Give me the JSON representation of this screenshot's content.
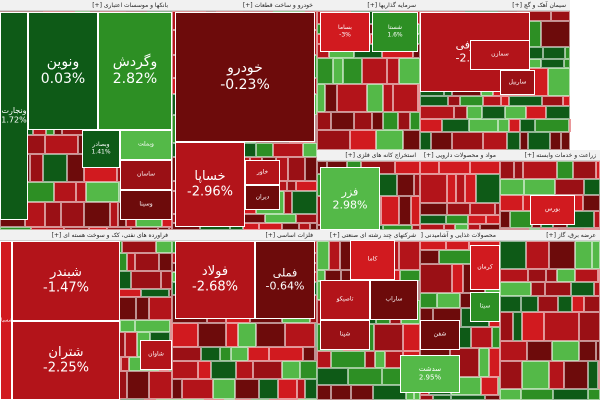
{
  "palette": {
    "dark_red": "#6d0b0b",
    "red": "#b3141a",
    "mid_red": "#9a1015",
    "bright_red": "#d11a1f",
    "dark_green": "#0e5a17",
    "green": "#2d8f24",
    "bright_green": "#54b948"
  },
  "chart_data": {
    "type": "heatmap",
    "sectors": [
      {
        "title": "بانکها و موسسات اعتباری [+]"
      },
      {
        "title": "خودرو و ساخت قطعات [+]"
      },
      {
        "title": "سرمایه گذاریها [+]"
      },
      {
        "title": "سیمان آهک و گچ [+]"
      },
      {
        "title": "فراورده های نفتی، کک و سوخت هسته ای [+]"
      },
      {
        "title": "فلزات اساسی [+]"
      },
      {
        "title": "استخراج کانه های فلزی [+]"
      },
      {
        "title": "مواد و محصولات دارویی [+]"
      },
      {
        "title": "زراعت و خدمات وابسته [+]"
      },
      {
        "title": "شرکتهای چند رشته ای صنعتی [+]"
      },
      {
        "title": "محصولات غذایی و آشامیدنی [+]"
      },
      {
        "title": "عرضه برق، گاز [+]"
      }
    ],
    "stocks": [
      {
        "symbol": "ونوین",
        "change": "0.03%"
      },
      {
        "symbol": "وگردش",
        "change": "2.82%"
      },
      {
        "symbol": "ونجارت",
        "change": "1.72%"
      },
      {
        "symbol": "خودرو",
        "change": "-0.23%"
      },
      {
        "symbol": "خساپا",
        "change": "-2.96%"
      },
      {
        "symbol": "سصوفی",
        "change": "-2.95%"
      },
      {
        "symbol": "شبندر",
        "change": "-1.47%"
      },
      {
        "symbol": "شتران",
        "change": "-2.25%"
      },
      {
        "symbol": "فولاد",
        "change": "-2.68%"
      },
      {
        "symbol": "فملی",
        "change": "-0.64%"
      },
      {
        "symbol": "فزر",
        "change": "2.98%"
      },
      {
        "symbol": "بساما",
        "change": "-3%"
      },
      {
        "symbol": "وبصادر",
        "change": "1.41%"
      },
      {
        "symbol": "سدشت",
        "change": "2.95%"
      },
      {
        "symbol": "شستا",
        "change": "1.6%"
      },
      {
        "symbol": "وبملت",
        "change": ""
      },
      {
        "symbol": "ساسان",
        "change": ""
      },
      {
        "symbol": "وسینا",
        "change": ""
      },
      {
        "symbol": "شاوان",
        "change": ""
      },
      {
        "symbol": "خاور",
        "change": ""
      },
      {
        "symbol": "دیران",
        "change": ""
      },
      {
        "symbol": "کاما",
        "change": ""
      },
      {
        "symbol": "تاصیکو",
        "change": ""
      },
      {
        "symbol": "ساراب",
        "change": ""
      },
      {
        "symbol": "سیتا",
        "change": ""
      },
      {
        "symbol": "کرمان",
        "change": ""
      },
      {
        "symbol": "بورس",
        "change": ""
      },
      {
        "symbol": "شسپا",
        "change": ""
      },
      {
        "symbol": "شپنا",
        "change": ""
      },
      {
        "symbol": "شفن",
        "change": ""
      },
      {
        "symbol": "سمازن",
        "change": ""
      },
      {
        "symbol": "ساربیل",
        "change": ""
      }
    ]
  }
}
